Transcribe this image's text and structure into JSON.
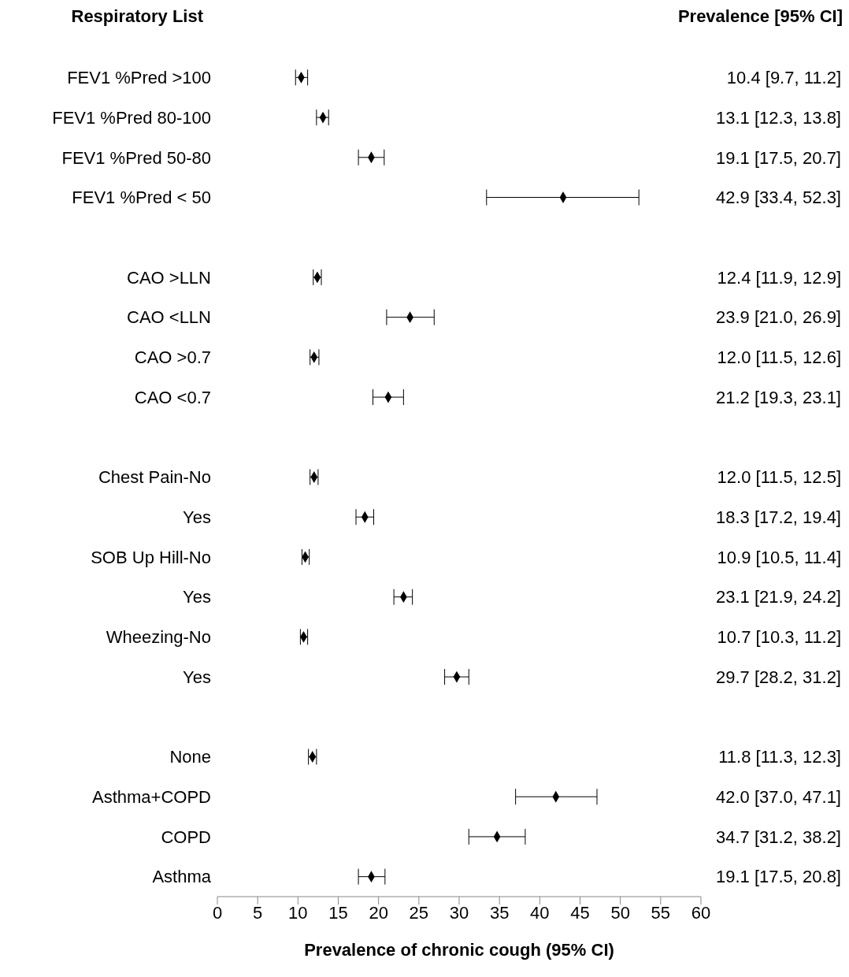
{
  "chart_data": {
    "type": "scatter",
    "orientation": "horizontal",
    "ylabel": "Respiratory List",
    "xlabel": "Prevalence of chronic cough (95% CI)",
    "annotations": [
      "Prevalence [95% CI]"
    ],
    "categories": [
      "FEV1 %Pred >100",
      "FEV1 %Pred 80-100",
      "FEV1 %Pred 50-80",
      "FEV1 %Pred < 50",
      null,
      "CAO >LLN",
      "CAO <LLN",
      "CAO >0.7",
      "CAO <0.7",
      null,
      "Chest Pain-No",
      "Yes",
      "SOB Up Hill-No",
      "Yes",
      "Wheezing-No",
      "Yes",
      null,
      "None",
      "Asthma+COPD",
      "COPD",
      "Asthma"
    ],
    "values": [
      10.4,
      13.1,
      19.1,
      42.9,
      null,
      12.4,
      23.9,
      12.0,
      21.2,
      null,
      12.0,
      18.3,
      10.9,
      23.1,
      10.7,
      29.7,
      null,
      11.8,
      42.0,
      34.7,
      19.1
    ],
    "errors": [
      [
        9.7,
        11.2
      ],
      [
        12.3,
        13.8
      ],
      [
        17.5,
        20.7
      ],
      [
        33.4,
        52.3
      ],
      null,
      [
        11.9,
        12.9
      ],
      [
        21.0,
        26.9
      ],
      [
        11.5,
        12.6
      ],
      [
        19.3,
        23.1
      ],
      null,
      [
        11.5,
        12.5
      ],
      [
        17.2,
        19.4
      ],
      [
        10.5,
        11.4
      ],
      [
        21.9,
        24.2
      ],
      [
        10.3,
        11.2
      ],
      [
        28.2,
        31.2
      ],
      null,
      [
        11.3,
        12.3
      ],
      [
        37.0,
        47.1
      ],
      [
        31.2,
        38.2
      ],
      [
        17.5,
        20.8
      ]
    ],
    "value_labels": [
      "10.4 [9.7, 11.2]",
      "13.1 [12.3, 13.8]",
      "19.1 [17.5, 20.7]",
      "42.9 [33.4, 52.3]",
      null,
      "12.4 [11.9, 12.9]",
      "23.9 [21.0, 26.9]",
      "12.0 [11.5, 12.6]",
      "21.2 [19.3, 23.1]",
      null,
      "12.0 [11.5, 12.5]",
      "18.3 [17.2, 19.4]",
      "10.9 [10.5, 11.4]",
      "23.1 [21.9, 24.2]",
      "10.7 [10.3, 11.2]",
      "29.7 [28.2, 31.2]",
      null,
      "11.8 [11.3, 12.3]",
      "42.0 [37.0, 47.1]",
      "34.7 [31.2, 38.2]",
      "19.1 [17.5, 20.8]"
    ],
    "color": "#000000",
    "marker": "diamond",
    "xlim": [
      0,
      60
    ],
    "xticks": [
      0,
      5,
      10,
      15,
      20,
      25,
      30,
      35,
      40,
      45,
      50,
      55,
      60
    ]
  }
}
